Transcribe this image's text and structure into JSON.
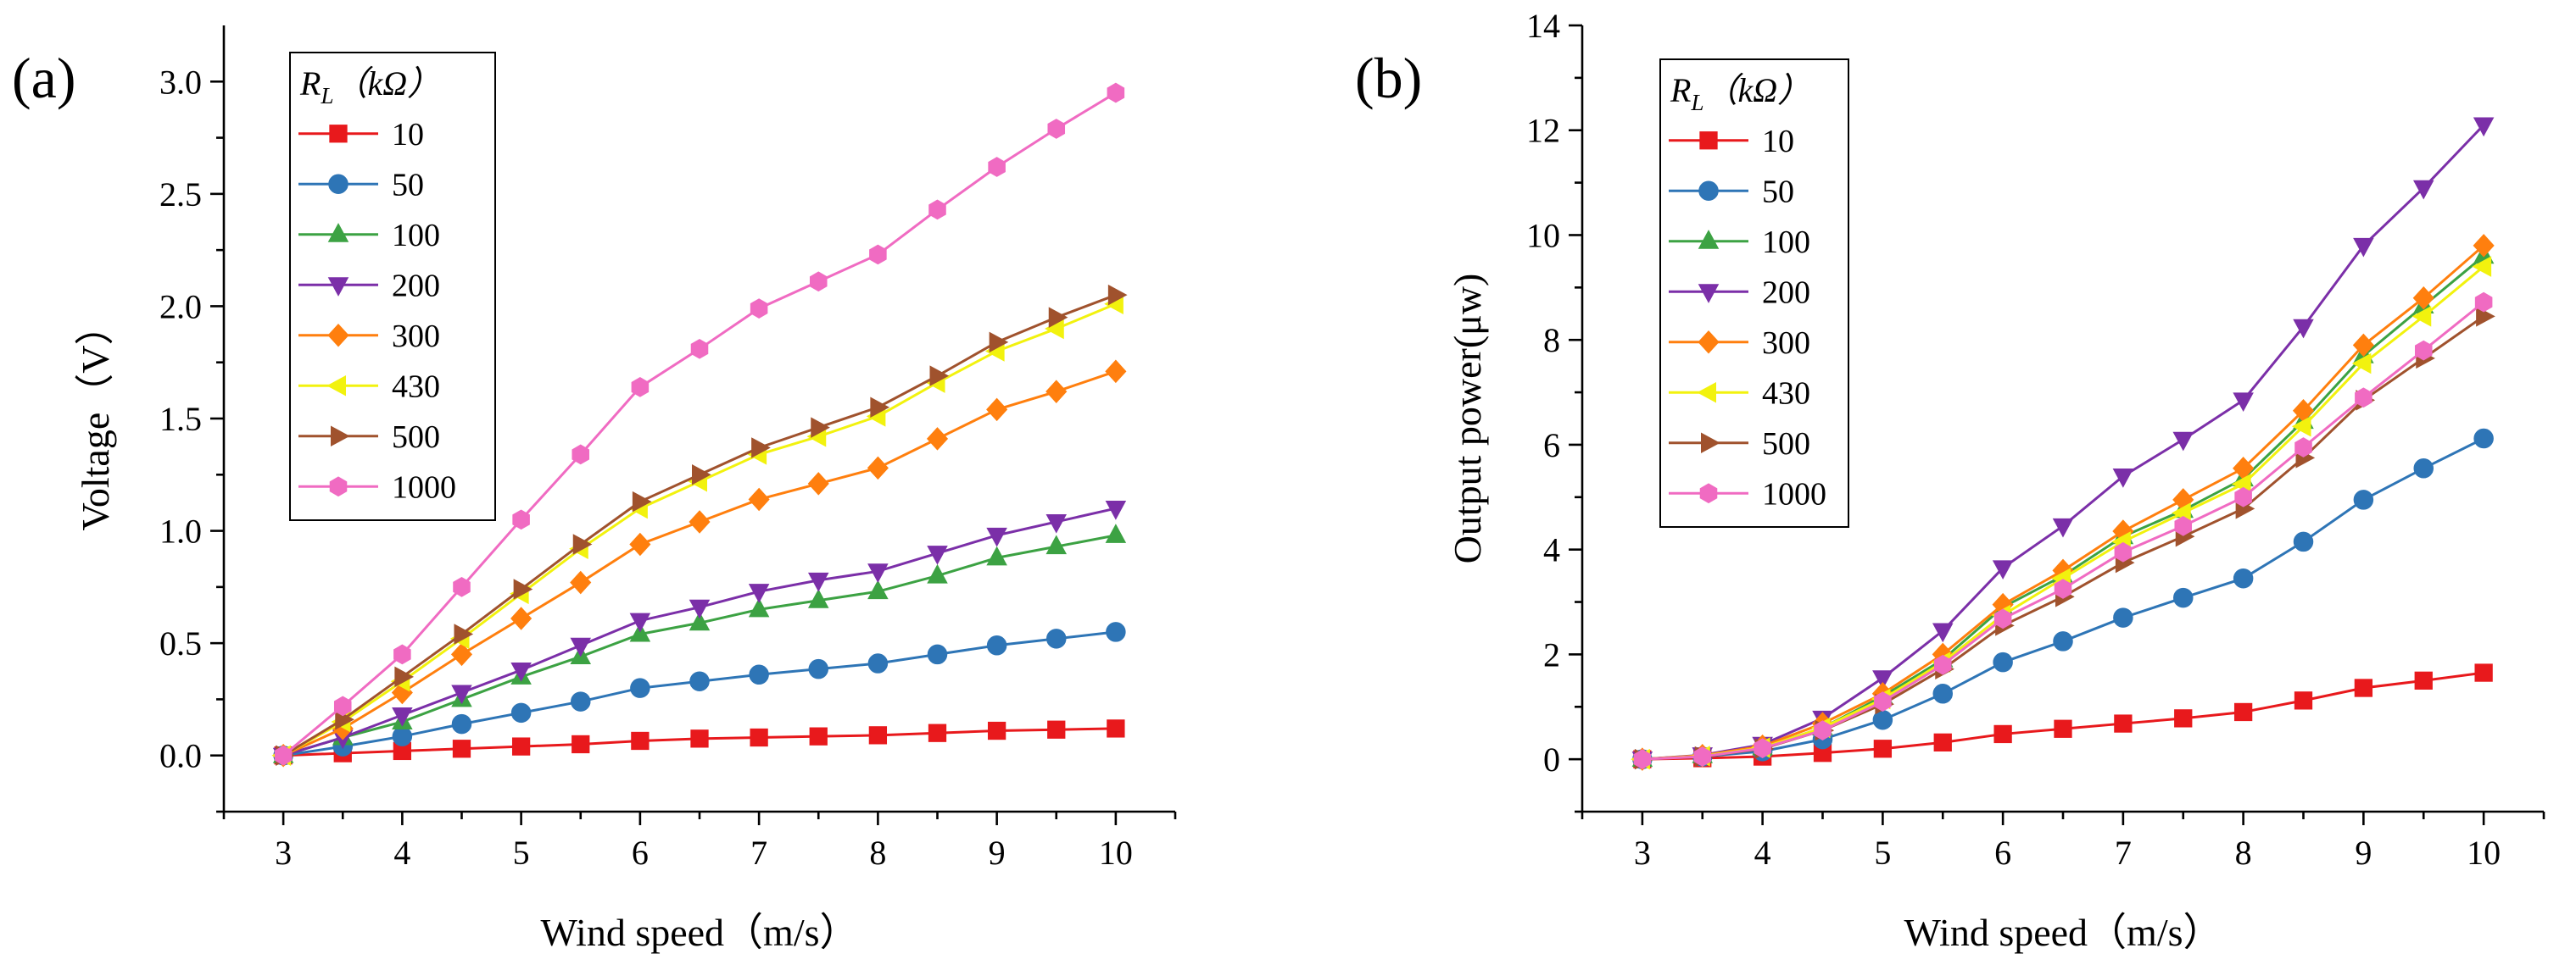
{
  "chart_data": [
    {
      "type": "line",
      "panel_label": "(a)",
      "xlabel": "Wind speed（m/s）",
      "ylabel": "Voltage（V）",
      "xlim": [
        2.5,
        10.5
      ],
      "ylim": [
        -0.25,
        3.25
      ],
      "xticks": [
        "3",
        "4",
        "5",
        "6",
        "7",
        "8",
        "9",
        "10"
      ],
      "yticks": [
        "0.0",
        "0.5",
        "1.0",
        "1.5",
        "2.0",
        "2.5",
        "3.0"
      ],
      "legend": {
        "title": {
          "var": "R",
          "sub": "L",
          "unit": "（kΩ）"
        },
        "placement": "top-left"
      },
      "x": [
        3,
        3.5,
        4,
        4.5,
        5,
        5.5,
        6,
        6.5,
        7,
        7.5,
        8,
        8.5,
        9,
        9.5,
        10
      ],
      "series": [
        {
          "name": "10",
          "color": "#e8191c",
          "marker": "square",
          "values": [
            0,
            0.01,
            0.02,
            0.03,
            0.04,
            0.05,
            0.065,
            0.075,
            0.08,
            0.085,
            0.09,
            0.1,
            0.11,
            0.115,
            0.12
          ]
        },
        {
          "name": "50",
          "color": "#2e75b6",
          "marker": "circle",
          "values": [
            0,
            0.04,
            0.085,
            0.14,
            0.19,
            0.24,
            0.3,
            0.33,
            0.36,
            0.385,
            0.41,
            0.45,
            0.49,
            0.52,
            0.55
          ]
        },
        {
          "name": "100",
          "color": "#3ca243",
          "marker": "triangle-up",
          "values": [
            0,
            0.08,
            0.15,
            0.25,
            0.35,
            0.44,
            0.54,
            0.59,
            0.65,
            0.69,
            0.73,
            0.8,
            0.88,
            0.93,
            0.98
          ]
        },
        {
          "name": "200",
          "color": "#7b2fa8",
          "marker": "triangle-down",
          "values": [
            0,
            0.08,
            0.18,
            0.28,
            0.38,
            0.49,
            0.6,
            0.66,
            0.73,
            0.78,
            0.82,
            0.9,
            0.98,
            1.04,
            1.1
          ]
        },
        {
          "name": "300",
          "color": "#ff7f0e",
          "marker": "diamond",
          "values": [
            0,
            0.12,
            0.28,
            0.45,
            0.61,
            0.77,
            0.94,
            1.04,
            1.14,
            1.21,
            1.28,
            1.41,
            1.54,
            1.62,
            1.71
          ]
        },
        {
          "name": "430",
          "color": "#f2f20e",
          "marker": "triangle-left",
          "values": [
            0,
            0.15,
            0.33,
            0.52,
            0.72,
            0.92,
            1.1,
            1.22,
            1.34,
            1.42,
            1.51,
            1.66,
            1.8,
            1.9,
            2.01
          ]
        },
        {
          "name": "500",
          "color": "#a0522d",
          "marker": "triangle-right",
          "values": [
            0,
            0.16,
            0.35,
            0.54,
            0.74,
            0.94,
            1.13,
            1.25,
            1.37,
            1.46,
            1.55,
            1.69,
            1.84,
            1.95,
            2.05
          ]
        },
        {
          "name": "1000",
          "color": "#f06bc2",
          "marker": "hexagon",
          "values": [
            0,
            0.22,
            0.45,
            0.75,
            1.05,
            1.34,
            1.64,
            1.81,
            1.99,
            2.11,
            2.23,
            2.43,
            2.62,
            2.79,
            2.95
          ]
        }
      ]
    },
    {
      "type": "line",
      "panel_label": "(b)",
      "xlabel": "Wind speed（m/s）",
      "ylabel": "Output power(μw)",
      "xlim": [
        2.5,
        10.5
      ],
      "ylim": [
        -1,
        14
      ],
      "xticks": [
        "3",
        "4",
        "5",
        "6",
        "7",
        "8",
        "9",
        "10"
      ],
      "yticks": [
        "0",
        "2",
        "4",
        "6",
        "8",
        "10",
        "12",
        "14"
      ],
      "legend": {
        "title": {
          "var": "R",
          "sub": "L",
          "unit": "（kΩ）"
        },
        "placement": "top-left"
      },
      "x": [
        3,
        3.5,
        4,
        4.5,
        5,
        5.5,
        6,
        6.5,
        7,
        7.5,
        8,
        8.5,
        9,
        9.5,
        10
      ],
      "series": [
        {
          "name": "10",
          "color": "#e8191c",
          "marker": "square",
          "values": [
            0,
            0.02,
            0.05,
            0.12,
            0.2,
            0.32,
            0.48,
            0.58,
            0.68,
            0.78,
            0.9,
            1.12,
            1.36,
            1.5,
            1.65
          ]
        },
        {
          "name": "50",
          "color": "#2e75b6",
          "marker": "circle",
          "values": [
            0,
            0.05,
            0.15,
            0.38,
            0.75,
            1.25,
            1.85,
            2.25,
            2.7,
            3.08,
            3.45,
            4.15,
            4.95,
            5.55,
            6.12
          ]
        },
        {
          "name": "100",
          "color": "#3ca243",
          "marker": "triangle-up",
          "values": [
            0,
            0.07,
            0.22,
            0.6,
            1.2,
            1.9,
            2.9,
            3.5,
            4.25,
            4.75,
            5.35,
            6.45,
            7.7,
            8.65,
            9.6
          ]
        },
        {
          "name": "200",
          "color": "#7b2fa8",
          "marker": "triangle-down",
          "values": [
            0,
            0.08,
            0.28,
            0.78,
            1.55,
            2.45,
            3.65,
            4.45,
            5.4,
            6.1,
            6.85,
            8.25,
            9.8,
            10.9,
            12.1
          ]
        },
        {
          "name": "300",
          "color": "#ff7f0e",
          "marker": "diamond",
          "values": [
            0,
            0.07,
            0.25,
            0.68,
            1.25,
            2.0,
            2.95,
            3.6,
            4.35,
            4.95,
            5.55,
            6.65,
            7.9,
            8.8,
            9.8
          ]
        },
        {
          "name": "430",
          "color": "#f2f20e",
          "marker": "triangle-left",
          "values": [
            0,
            0.06,
            0.22,
            0.6,
            1.15,
            1.85,
            2.75,
            3.45,
            4.15,
            4.7,
            5.25,
            6.35,
            7.55,
            8.45,
            9.4
          ]
        },
        {
          "name": "500",
          "color": "#a0522d",
          "marker": "triangle-right",
          "values": [
            0,
            0.05,
            0.2,
            0.55,
            1.05,
            1.72,
            2.55,
            3.1,
            3.75,
            4.25,
            4.78,
            5.75,
            6.85,
            7.65,
            8.45
          ]
        },
        {
          "name": "1000",
          "color": "#f06bc2",
          "marker": "hexagon",
          "values": [
            0,
            0.05,
            0.21,
            0.55,
            1.1,
            1.8,
            2.68,
            3.25,
            3.95,
            4.45,
            5.0,
            5.95,
            6.9,
            7.8,
            8.72
          ]
        }
      ]
    }
  ]
}
